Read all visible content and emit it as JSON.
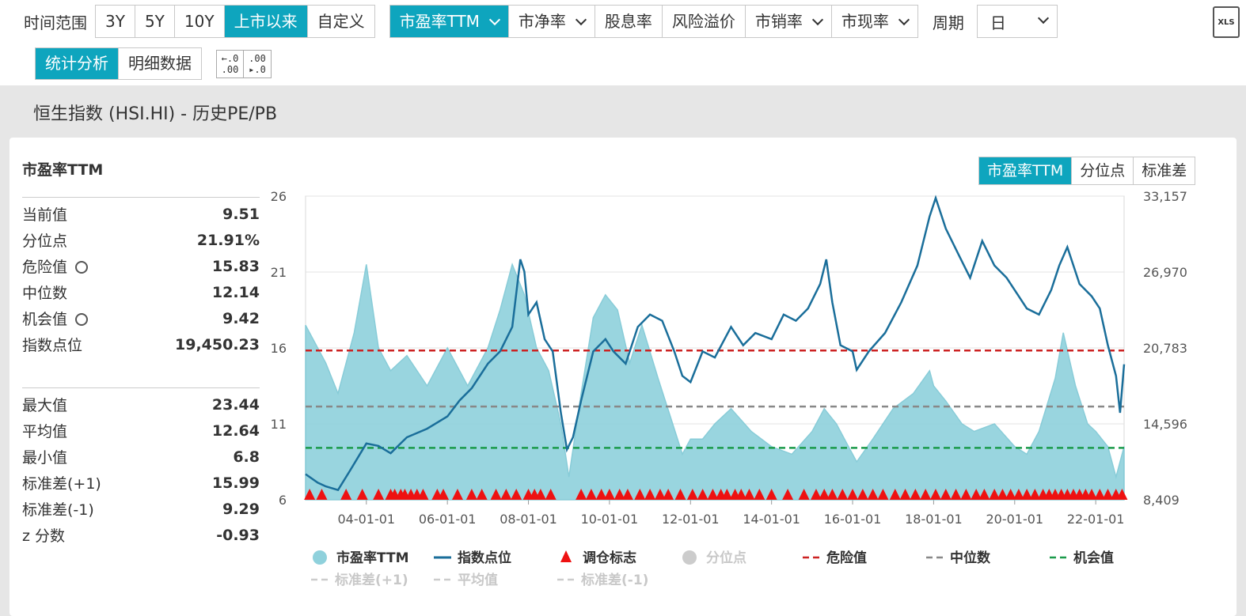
{
  "toolbar": {
    "range_label": "时间范围",
    "ranges": [
      "3Y",
      "5Y",
      "10Y",
      "上市以来",
      "自定义"
    ],
    "metrics": [
      "市盈率TTM",
      "市净率",
      "股息率",
      "风险溢价",
      "市销率",
      "市现率"
    ],
    "period_label": "周期",
    "period_value": "日",
    "xls_label": "XLS",
    "views": [
      "统计分析",
      "明细数据"
    ],
    "dec_less": ".0\n.00",
    "dec_more": ".00\n.0"
  },
  "page_title": "恒生指数 (HSI.HI) - 历史PE/PB",
  "stats": {
    "title": "市盈率TTM",
    "group1": [
      {
        "k": "当前值",
        "v": "9.51",
        "gear": false
      },
      {
        "k": "分位点",
        "v": "21.91%",
        "gear": false
      },
      {
        "k": "危险值",
        "v": "15.83",
        "gear": true
      },
      {
        "k": "中位数",
        "v": "12.14",
        "gear": false
      },
      {
        "k": "机会值",
        "v": "9.42",
        "gear": true
      },
      {
        "k": "指数点位",
        "v": "19,450.23",
        "gear": false
      }
    ],
    "group2": [
      {
        "k": "最大值",
        "v": "23.44"
      },
      {
        "k": "平均值",
        "v": "12.64"
      },
      {
        "k": "最小值",
        "v": "6.8"
      },
      {
        "k": "标准差(+1)",
        "v": "15.99"
      },
      {
        "k": "标准差(-1)",
        "v": "9.29"
      },
      {
        "k": "z 分数",
        "v": "-0.93"
      }
    ]
  },
  "chart_tabs": [
    "市盈率TTM",
    "分位点",
    "标准差"
  ],
  "colors": {
    "pe_fill": "#8fd1dc",
    "index_line": "#1a6e9a",
    "danger": "#cc2222",
    "median": "#888888",
    "opportunity": "#1a9a4a",
    "marker": "#ee1111",
    "accent": "#0ea5be"
  },
  "chart_data": {
    "type": "area",
    "x_ticks": [
      "04-01-01",
      "06-01-01",
      "08-01-01",
      "10-01-01",
      "12-01-01",
      "14-01-01",
      "16-01-01",
      "18-01-01",
      "20-01-01",
      "22-01-01"
    ],
    "x_range": [
      2002.5,
      2022.7
    ],
    "y_left": {
      "ticks": [
        "26",
        "21",
        "16",
        "11",
        "6"
      ],
      "range": [
        6,
        26
      ]
    },
    "y_right": {
      "ticks": [
        "33,157",
        "26,970",
        "20,783",
        "14,596",
        "8,409"
      ],
      "range": [
        8409,
        33157
      ]
    },
    "series": [
      {
        "name": "市盈率TTM",
        "axis": "left",
        "x": [
          2002.5,
          2003.0,
          2003.3,
          2003.7,
          2004.0,
          2004.3,
          2004.6,
          2005.0,
          2005.5,
          2006.0,
          2006.5,
          2007.0,
          2007.3,
          2007.6,
          2007.9,
          2008.2,
          2008.5,
          2008.8,
          2009.0,
          2009.3,
          2009.6,
          2009.9,
          2010.2,
          2010.5,
          2010.8,
          2011.2,
          2011.5,
          2011.8,
          2012.0,
          2012.3,
          2012.6,
          2013.0,
          2013.5,
          2014.0,
          2014.5,
          2015.0,
          2015.3,
          2015.6,
          2015.9,
          2016.1,
          2016.5,
          2017.0,
          2017.5,
          2017.9,
          2018.0,
          2018.3,
          2018.7,
          2019.0,
          2019.5,
          2020.0,
          2020.3,
          2020.6,
          2021.0,
          2021.2,
          2021.5,
          2021.8,
          2022.0,
          2022.3,
          2022.5,
          2022.7
        ],
        "y": [
          17.5,
          15.0,
          13.0,
          17.0,
          21.5,
          16.0,
          14.5,
          15.5,
          13.5,
          16.0,
          13.5,
          16.0,
          18.5,
          21.5,
          19.5,
          16.0,
          14.5,
          11.0,
          7.5,
          13.0,
          18.0,
          19.5,
          18.5,
          15.0,
          17.5,
          14.0,
          11.5,
          9.0,
          10.0,
          10.0,
          11.0,
          12.0,
          10.5,
          9.5,
          9.0,
          10.5,
          12.0,
          11.0,
          9.5,
          8.5,
          10.0,
          12.0,
          13.0,
          14.5,
          13.5,
          12.5,
          11.0,
          10.5,
          11.0,
          9.5,
          9.0,
          10.5,
          14.0,
          17.0,
          13.5,
          11.0,
          10.5,
          9.5,
          7.5,
          9.5
        ]
      },
      {
        "name": "指数点位",
        "axis": "right",
        "x": [
          2002.5,
          2002.8,
          2003.0,
          2003.3,
          2003.6,
          2004.0,
          2004.3,
          2004.6,
          2005.0,
          2005.5,
          2006.0,
          2006.3,
          2006.6,
          2007.0,
          2007.3,
          2007.6,
          2007.8,
          2007.9,
          2008.0,
          2008.2,
          2008.4,
          2008.6,
          2008.8,
          2008.95,
          2009.1,
          2009.3,
          2009.6,
          2009.9,
          2010.1,
          2010.4,
          2010.7,
          2011.0,
          2011.3,
          2011.6,
          2011.8,
          2012.0,
          2012.3,
          2012.6,
          2013.0,
          2013.3,
          2013.6,
          2014.0,
          2014.3,
          2014.6,
          2014.9,
          2015.2,
          2015.35,
          2015.5,
          2015.7,
          2016.0,
          2016.1,
          2016.4,
          2016.8,
          2017.2,
          2017.6,
          2017.9,
          2018.05,
          2018.3,
          2018.6,
          2018.9,
          2019.2,
          2019.5,
          2019.8,
          2020.1,
          2020.3,
          2020.6,
          2020.9,
          2021.1,
          2021.3,
          2021.6,
          2021.9,
          2022.1,
          2022.3,
          2022.5,
          2022.6,
          2022.7
        ],
        "y": [
          10500,
          9800,
          9500,
          9200,
          10800,
          13000,
          12800,
          12200,
          13500,
          14200,
          15200,
          16500,
          17500,
          19500,
          20500,
          22500,
          28000,
          27000,
          23500,
          24500,
          21500,
          20500,
          15500,
          12500,
          13500,
          16500,
          20500,
          21500,
          20500,
          19500,
          22500,
          23500,
          23000,
          20500,
          18500,
          18000,
          20500,
          20000,
          22500,
          21000,
          22000,
          21500,
          23500,
          23000,
          24000,
          26000,
          28000,
          24500,
          21000,
          20500,
          19000,
          20500,
          22000,
          24500,
          27500,
          31500,
          33000,
          30500,
          28500,
          26500,
          29500,
          27500,
          26500,
          25000,
          24000,
          23500,
          25500,
          27500,
          29000,
          26000,
          25000,
          24000,
          21000,
          18500,
          15500,
          19450
        ]
      }
    ],
    "reference_lines": [
      {
        "name": "危险值",
        "value": 15.83
      },
      {
        "name": "中位数",
        "value": 12.14
      },
      {
        "name": "机会值",
        "value": 9.42
      }
    ],
    "rebalance_markers": [
      2002.6,
      2002.9,
      2003.5,
      2003.9,
      2004.3,
      2004.6,
      2004.7,
      2004.85,
      2004.95,
      2005.1,
      2005.25,
      2005.4,
      2005.75,
      2005.9,
      2006.25,
      2006.6,
      2006.85,
      2007.2,
      2007.45,
      2007.7,
      2008.0,
      2008.15,
      2008.3,
      2008.55,
      2009.3,
      2009.55,
      2009.8,
      2010.0,
      2010.25,
      2010.45,
      2010.75,
      2011.0,
      2011.25,
      2011.45,
      2011.75,
      2012.05,
      2012.3,
      2012.55,
      2012.75,
      2012.9,
      2013.1,
      2013.25,
      2013.45,
      2013.7,
      2014.0,
      2014.4,
      2014.8,
      2015.1,
      2015.3,
      2015.5,
      2015.75,
      2016.0,
      2016.25,
      2016.5,
      2016.75,
      2017.05,
      2017.3,
      2017.55,
      2017.8,
      2018.05,
      2018.3,
      2018.55,
      2018.8,
      2019.05,
      2019.25,
      2019.5,
      2019.7,
      2019.9,
      2020.1,
      2020.3,
      2020.5,
      2020.7,
      2020.85,
      2021.0,
      2021.15,
      2021.3,
      2021.45,
      2021.6,
      2021.75,
      2021.9,
      2022.1,
      2022.3,
      2022.5,
      2022.65
    ],
    "legend": {
      "row1": [
        {
          "label": "市盈率TTM",
          "kind": "circle",
          "color": "#8fd1dc"
        },
        {
          "label": "指数点位",
          "kind": "line",
          "color": "#1a6e9a"
        },
        {
          "label": "调仓标志",
          "kind": "triangle",
          "color": "#ee1111"
        },
        {
          "label": "分位点",
          "kind": "circle",
          "color": "#cccccc",
          "muted": true
        },
        {
          "label": "危险值",
          "kind": "dash",
          "color": "#cc2222"
        },
        {
          "label": "中位数",
          "kind": "dash",
          "color": "#888888"
        },
        {
          "label": "机会值",
          "kind": "dash",
          "color": "#1a9a4a"
        }
      ],
      "row2": [
        {
          "label": "标准差(+1)",
          "kind": "dash",
          "color": "#cccccc",
          "muted": true
        },
        {
          "label": "平均值",
          "kind": "dash",
          "color": "#cccccc",
          "muted": true
        },
        {
          "label": "标准差(-1)",
          "kind": "dash",
          "color": "#cccccc",
          "muted": true
        }
      ]
    }
  }
}
